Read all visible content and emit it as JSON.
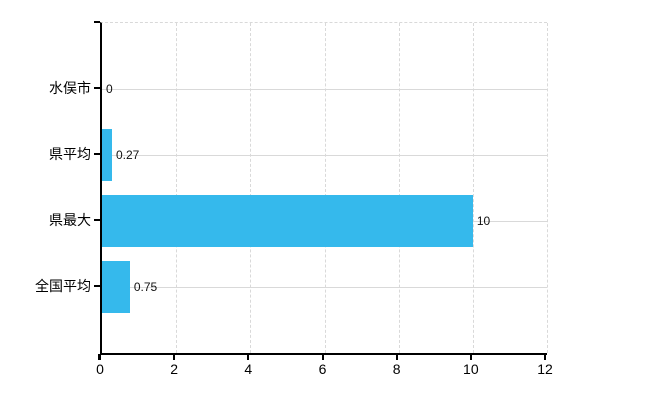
{
  "chart_data": {
    "type": "bar",
    "orientation": "horizontal",
    "title": "",
    "xlabel": "",
    "ylabel": "",
    "categories": [
      "水俣市",
      "県平均",
      "県最大",
      "全国平均"
    ],
    "values": [
      0,
      0.27,
      10,
      0.75
    ],
    "value_labels": [
      "0",
      "0.27",
      "10",
      "0.75"
    ],
    "xlim": [
      0,
      12
    ],
    "xticks": [
      0,
      2,
      4,
      6,
      8,
      10,
      12
    ],
    "xtick_labels": [
      "0",
      "2",
      "4",
      "6",
      "8",
      "10",
      "12"
    ],
    "grid": true,
    "legend": false,
    "colors": {
      "bar": "#35b9ec",
      "axis": "#000000",
      "grid": "#d9d9d9",
      "text": "#000000",
      "value_text": "#111111",
      "background": "#ffffff"
    }
  }
}
